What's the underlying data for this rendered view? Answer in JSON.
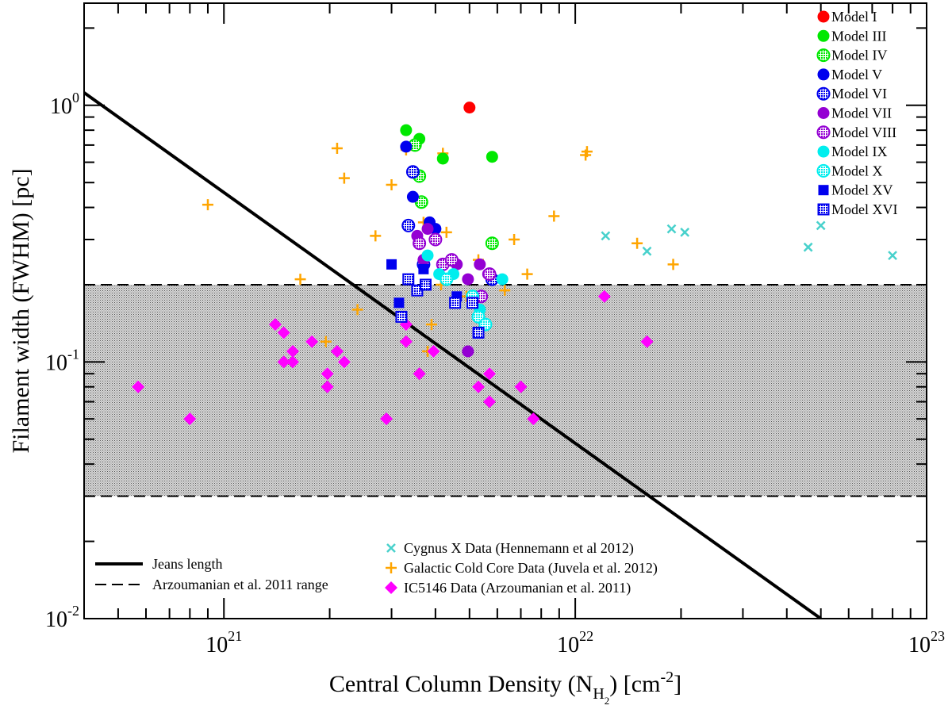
{
  "chart_data": {
    "type": "scatter",
    "xscale": "log",
    "yscale": "log",
    "xlim": [
      4e+20,
      1e+23
    ],
    "ylim": [
      0.01,
      2.5
    ],
    "xlabel": {
      "main": "Central Column Density (N",
      "sub": "H",
      "subsub": "2",
      "mid": ") [cm",
      "sup": "-2",
      "end": "]"
    },
    "ylabel": "Filament width (FWHM) [pc]",
    "xticks": [
      {
        "value": 1e+21,
        "base": "10",
        "exp": "21"
      },
      {
        "value": 1e+22,
        "base": "10",
        "exp": "22"
      },
      {
        "value": 1e+23,
        "base": "10",
        "exp": "23"
      }
    ],
    "yticks": [
      {
        "value": 0.01,
        "base": "10",
        "exp": "-2"
      },
      {
        "value": 0.1,
        "base": "10",
        "exp": "-1"
      },
      {
        "value": 1,
        "base": "10",
        "exp": "0"
      }
    ],
    "shaded_band": {
      "ymin": 0.03,
      "ymax": 0.2,
      "label": "Arzoumanian et al. 2011 range"
    },
    "jeans_line": {
      "label": "Jeans length",
      "x": [
        4e+20,
        5e+22
      ],
      "y": [
        1.12,
        0.01
      ]
    },
    "legend_lines": [
      {
        "label": "Jeans length",
        "style": "solid"
      },
      {
        "label": "Arzoumanian et al. 2011 range",
        "style": "dashed"
      }
    ],
    "series": [
      {
        "name": "Model I",
        "marker": "circle",
        "fill": "solid",
        "color": "#ff0000",
        "points": [
          [
            5e+21,
            0.98
          ]
        ]
      },
      {
        "name": "Model III",
        "marker": "circle",
        "fill": "solid",
        "color": "#00e800",
        "points": [
          [
            3.3e+21,
            0.8
          ],
          [
            3.6e+21,
            0.74
          ],
          [
            4.2e+21,
            0.62
          ],
          [
            5.8e+21,
            0.63
          ]
        ]
      },
      {
        "name": "Model IV",
        "marker": "circle",
        "fill": "hatched",
        "color": "#00e800",
        "points": [
          [
            3.5e+21,
            0.7
          ],
          [
            3.6e+21,
            0.53
          ],
          [
            3.65e+21,
            0.42
          ],
          [
            5.8e+21,
            0.29
          ]
        ]
      },
      {
        "name": "Model V",
        "marker": "circle",
        "fill": "solid",
        "color": "#0000ee",
        "points": [
          [
            3.3e+21,
            0.69
          ],
          [
            3.45e+21,
            0.44
          ],
          [
            3.85e+21,
            0.35
          ],
          [
            4e+21,
            0.33
          ]
        ]
      },
      {
        "name": "Model VI",
        "marker": "circle",
        "fill": "hatched",
        "color": "#0000ee",
        "points": [
          [
            3.45e+21,
            0.55
          ],
          [
            3.35e+21,
            0.34
          ],
          [
            3.7e+21,
            0.24
          ],
          [
            5.8e+21,
            0.21
          ]
        ]
      },
      {
        "name": "Model VII",
        "marker": "circle",
        "fill": "solid",
        "color": "#9400d3",
        "points": [
          [
            3.55e+21,
            0.31
          ],
          [
            3.8e+21,
            0.33
          ],
          [
            3.7e+21,
            0.25
          ],
          [
            4.6e+21,
            0.24
          ],
          [
            5.35e+21,
            0.24
          ],
          [
            4.95e+21,
            0.21
          ],
          [
            5.65e+21,
            0.22
          ],
          [
            4.95e+21,
            0.11
          ]
        ]
      },
      {
        "name": "Model VIII",
        "marker": "circle",
        "fill": "hatched",
        "color": "#9400d3",
        "points": [
          [
            3.6e+21,
            0.29
          ],
          [
            4e+21,
            0.3
          ],
          [
            4.2e+21,
            0.24
          ],
          [
            4.45e+21,
            0.25
          ],
          [
            5.4e+21,
            0.18
          ],
          [
            5.7e+21,
            0.22
          ]
        ]
      },
      {
        "name": "Model IX",
        "marker": "circle",
        "fill": "solid",
        "color": "#00eeee",
        "points": [
          [
            3.8e+21,
            0.26
          ],
          [
            4.1e+21,
            0.22
          ],
          [
            4.5e+21,
            0.22
          ],
          [
            6.2e+21,
            0.21
          ],
          [
            5.35e+21,
            0.16
          ]
        ]
      },
      {
        "name": "Model X",
        "marker": "circle",
        "fill": "hatched",
        "color": "#00eeee",
        "points": [
          [
            4.3e+21,
            0.21
          ],
          [
            5.1e+21,
            0.18
          ],
          [
            5.3e+21,
            0.15
          ],
          [
            5.55e+21,
            0.14
          ]
        ]
      },
      {
        "name": "Model XV",
        "marker": "square",
        "fill": "solid",
        "color": "#0000ee",
        "points": [
          [
            3e+21,
            0.24
          ],
          [
            3.15e+21,
            0.17
          ],
          [
            3.7e+21,
            0.23
          ],
          [
            4.6e+21,
            0.18
          ]
        ]
      },
      {
        "name": "Model XVI",
        "marker": "square",
        "fill": "hatched",
        "color": "#0000ee",
        "points": [
          [
            3.35e+21,
            0.21
          ],
          [
            3.55e+21,
            0.19
          ],
          [
            3.75e+21,
            0.2
          ],
          [
            3.2e+21,
            0.15
          ],
          [
            4.55e+21,
            0.17
          ],
          [
            5.1e+21,
            0.17
          ],
          [
            5.3e+21,
            0.13
          ]
        ]
      },
      {
        "name": "Cygnus X Data (Hennemann et al 2012)",
        "marker": "x",
        "fill": "solid",
        "color": "#48d1cc",
        "points": [
          [
            1.22e+22,
            0.31
          ],
          [
            1.6e+22,
            0.27
          ],
          [
            1.88e+22,
            0.33
          ],
          [
            2.05e+22,
            0.32
          ],
          [
            4.6e+22,
            0.28
          ],
          [
            5e+22,
            0.34
          ],
          [
            8e+22,
            0.26
          ]
        ]
      },
      {
        "name": "Galactic Cold Core Data (Juvela et al. 2012)",
        "marker": "plus",
        "fill": "solid",
        "color": "#ffa500",
        "points": [
          [
            9e+20,
            0.41
          ],
          [
            2.1e+21,
            0.68
          ],
          [
            2.2e+21,
            0.52
          ],
          [
            2.7e+21,
            0.31
          ],
          [
            3e+21,
            0.49
          ],
          [
            3.3e+21,
            0.67
          ],
          [
            4.2e+21,
            0.65
          ],
          [
            4.3e+21,
            0.32
          ],
          [
            3.7e+21,
            0.35
          ],
          [
            4.15e+21,
            0.2
          ],
          [
            4.9e+21,
            0.18
          ],
          [
            5.3e+21,
            0.25
          ],
          [
            6.7e+21,
            0.3
          ],
          [
            7.3e+21,
            0.22
          ],
          [
            6.3e+21,
            0.19
          ],
          [
            8.7e+21,
            0.37
          ],
          [
            1.07e+22,
            0.64
          ],
          [
            1.08e+22,
            0.66
          ],
          [
            1.5e+22,
            0.29
          ],
          [
            1.9e+22,
            0.24
          ],
          [
            1.65e+21,
            0.21
          ],
          [
            1.95e+21,
            0.12
          ],
          [
            2.4e+21,
            0.16
          ],
          [
            3.9e+21,
            0.14
          ],
          [
            3.8e+21,
            0.11
          ]
        ]
      },
      {
        "name": "IC5146 Data (Arzoumanian et al. 2011)",
        "marker": "diamond",
        "fill": "solid",
        "color": "#ff00ff",
        "points": [
          [
            5.7e+20,
            0.08
          ],
          [
            8e+20,
            0.06
          ],
          [
            1.4e+21,
            0.14
          ],
          [
            1.48e+21,
            0.13
          ],
          [
            1.48e+21,
            0.1
          ],
          [
            1.57e+21,
            0.11
          ],
          [
            1.57e+21,
            0.1
          ],
          [
            1.78e+21,
            0.12
          ],
          [
            1.97e+21,
            0.09
          ],
          [
            1.97e+21,
            0.08
          ],
          [
            2.1e+21,
            0.11
          ],
          [
            2.2e+21,
            0.1
          ],
          [
            2.9e+21,
            0.06
          ],
          [
            3.3e+21,
            0.14
          ],
          [
            3.3e+21,
            0.12
          ],
          [
            3.6e+21,
            0.09
          ],
          [
            3.95e+21,
            0.11
          ],
          [
            5.3e+21,
            0.08
          ],
          [
            5.7e+21,
            0.09
          ],
          [
            5.7e+21,
            0.07
          ],
          [
            7e+21,
            0.08
          ],
          [
            7.6e+21,
            0.06
          ],
          [
            1.21e+22,
            0.18
          ],
          [
            1.6e+22,
            0.12
          ]
        ]
      }
    ],
    "legend_models": [
      "Model I",
      "Model III",
      "Model IV",
      "Model V",
      "Model VI",
      "Model VII",
      "Model VIII",
      "Model IX",
      "Model X",
      "Model XV",
      "Model XVI"
    ],
    "legend_data": [
      "Cygnus X Data (Hennemann et al 2012)",
      "Galactic Cold Core Data (Juvela et al. 2012)",
      "IC5146 Data (Arzoumanian et al. 2011)"
    ]
  }
}
